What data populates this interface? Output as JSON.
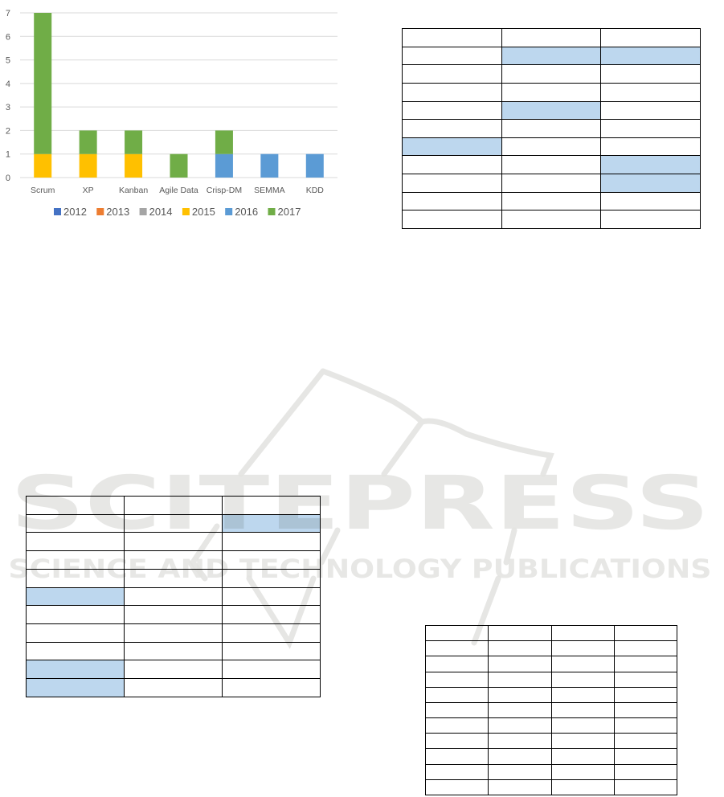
{
  "chart_data": {
    "type": "bar",
    "stacked": true,
    "categories": [
      "Scrum",
      "XP",
      "Kanban",
      "Agile Data",
      "Crisp-DM",
      "SEMMA",
      "KDD"
    ],
    "series": [
      {
        "name": "2012",
        "color": "#4472c4",
        "values": [
          0,
          0,
          0,
          0,
          0,
          0,
          0
        ]
      },
      {
        "name": "2013",
        "color": "#ed7d31",
        "values": [
          0,
          0,
          0,
          0,
          0,
          0,
          0
        ]
      },
      {
        "name": "2014",
        "color": "#a5a5a5",
        "values": [
          0,
          0,
          0,
          0,
          0,
          0,
          0
        ]
      },
      {
        "name": "2015",
        "color": "#ffc000",
        "values": [
          1,
          1,
          1,
          0,
          0,
          0,
          0
        ]
      },
      {
        "name": "2016",
        "color": "#5b9bd5",
        "values": [
          0,
          0,
          0,
          0,
          1,
          1,
          1
        ]
      },
      {
        "name": "2017",
        "color": "#70ad47",
        "values": [
          6,
          1,
          1,
          1,
          1,
          0,
          0
        ]
      }
    ],
    "yticks": [
      "0",
      "1",
      "2",
      "3",
      "4",
      "5",
      "6",
      "7"
    ],
    "ylim": [
      0,
      7
    ],
    "grid": true,
    "legend": "bottom",
    "title": "",
    "xlabel": "",
    "ylabel": ""
  },
  "tables": [
    {
      "id": "t1",
      "rows": 11,
      "cols": 3,
      "highlight_color": "#bdd7ee",
      "highlighted": [
        [
          1,
          1
        ],
        [
          1,
          2
        ],
        [
          4,
          1
        ],
        [
          6,
          0
        ],
        [
          7,
          2
        ],
        [
          8,
          2
        ]
      ]
    },
    {
      "id": "t2",
      "rows": 11,
      "cols": 3,
      "highlight_color": "#bdd7ee",
      "highlighted": [
        [
          1,
          2
        ],
        [
          5,
          0
        ],
        [
          9,
          0
        ],
        [
          10,
          0
        ]
      ]
    },
    {
      "id": "t3",
      "rows": 11,
      "cols": 4,
      "highlight_color": "#bdd7ee",
      "highlighted": []
    }
  ],
  "watermark": {
    "title": "SCITEPRESS",
    "subtitle": "SCIENCE AND TECHNOLOGY PUBLICATIONS"
  }
}
